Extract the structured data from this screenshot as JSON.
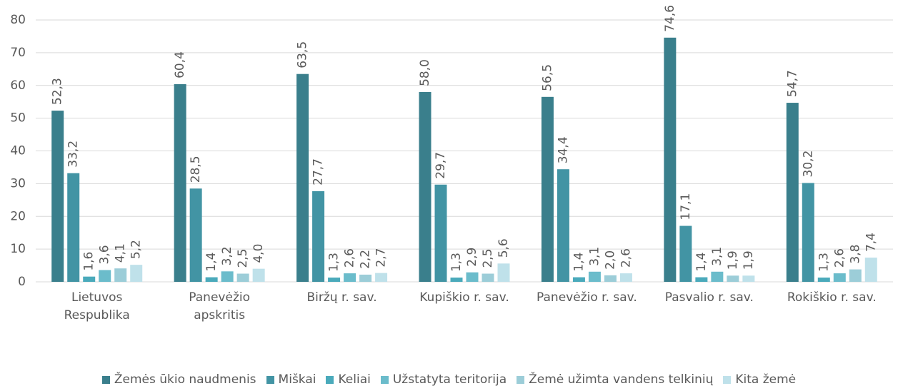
{
  "chart_data": {
    "type": "bar",
    "categories": [
      "Lietuvos Respublika",
      "Panevėžio apskritis",
      "Biržų r. sav.",
      "Kupiškio r. sav.",
      "Panevėžio r. sav.",
      "Pasvalio r. sav.",
      "Rokiškio r. sav."
    ],
    "series": [
      {
        "name": "Žemės ūkio naudmenis",
        "color": "#3a7f8c",
        "values": [
          52.3,
          60.4,
          63.5,
          58.0,
          56.5,
          74.6,
          54.7
        ],
        "value_labels": [
          "52,3",
          "60,4",
          "63,5",
          "58,0",
          "56,5",
          "74,6",
          "54,7"
        ]
      },
      {
        "name": "Miškai",
        "color": "#4294a4",
        "values": [
          33.2,
          28.5,
          27.7,
          29.7,
          34.4,
          17.1,
          30.2
        ],
        "value_labels": [
          "33,2",
          "28,5",
          "27,7",
          "29,7",
          "34,4",
          "17,1",
          "30,2"
        ]
      },
      {
        "name": "Keliai",
        "color": "#4aaabb",
        "values": [
          1.6,
          1.4,
          1.3,
          1.3,
          1.4,
          1.4,
          1.3
        ],
        "value_labels": [
          "1,6",
          "1,4",
          "1,3",
          "1,3",
          "1,4",
          "1,4",
          "1,3"
        ]
      },
      {
        "name": "Užstatyta teritorija",
        "color": "#6bbccb",
        "values": [
          3.6,
          3.2,
          2.6,
          2.9,
          3.1,
          3.1,
          2.6
        ],
        "value_labels": [
          "3,6",
          "3,2",
          "2,6",
          "2,9",
          "3,1",
          "3,1",
          "2,6"
        ]
      },
      {
        "name": "Žemė užimta vandens telkinių",
        "color": "#9ccdd8",
        "values": [
          4.1,
          2.5,
          2.2,
          2.5,
          2.0,
          1.9,
          3.8
        ],
        "value_labels": [
          "4,1",
          "2,5",
          "2,2",
          "2,5",
          "2,0",
          "1,9",
          "3,8"
        ]
      },
      {
        "name": "Kita žemė",
        "color": "#bfe1ea",
        "values": [
          5.2,
          4.0,
          2.7,
          5.6,
          2.6,
          1.9,
          7.4
        ],
        "value_labels": [
          "5,2",
          "4,0",
          "2,7",
          "5,6",
          "2,6",
          "1,9",
          "7,4"
        ]
      }
    ],
    "ylim": [
      0,
      80
    ],
    "yticks": [
      0,
      10,
      20,
      30,
      40,
      50,
      60,
      70,
      80
    ],
    "grid": true,
    "legend": "bottom"
  }
}
